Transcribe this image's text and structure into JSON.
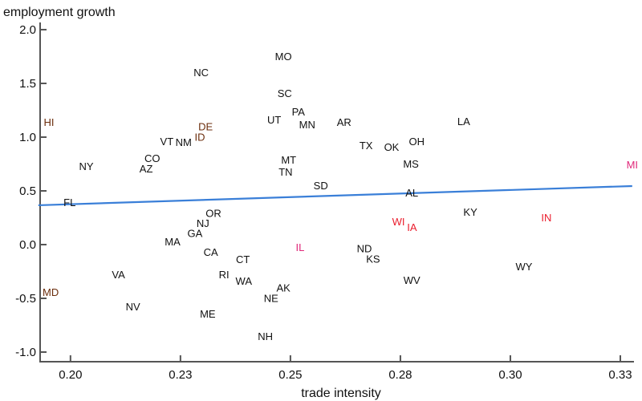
{
  "chart_data": {
    "type": "scatter",
    "title": "employment growth",
    "xlabel": "trade intensity",
    "ylabel": "employment growth",
    "xlim": [
      0.1931,
      0.3281
    ],
    "ylim": [
      -1.082,
      2.067
    ],
    "grid": false,
    "xticks": [
      {
        "value": 0.2,
        "label": "0.20"
      },
      {
        "value": 0.225,
        "label": "0.23"
      },
      {
        "value": 0.25,
        "label": "0.25"
      },
      {
        "value": 0.275,
        "label": "0.28"
      },
      {
        "value": 0.3,
        "label": "0.30"
      },
      {
        "value": 0.325,
        "label": "0.33"
      }
    ],
    "yticks": [
      {
        "value": 2.0,
        "label": "2.0"
      },
      {
        "value": 1.5,
        "label": "1.5"
      },
      {
        "value": 1.0,
        "label": "1.0"
      },
      {
        "value": 0.5,
        "label": "0.5"
      },
      {
        "value": 0.0,
        "label": "0.0"
      },
      {
        "value": -0.5,
        "label": "-0.5"
      },
      {
        "value": -1.0,
        "label": "-1.0"
      }
    ],
    "fit_line": {
      "x": [
        0.1927,
        0.3277
      ],
      "y": [
        0.366,
        0.545
      ],
      "color": "#3a7fd8"
    },
    "colors": {
      "default": "#111111",
      "brown": "#6b2d0c",
      "red": "#ea1c2c",
      "pink": "#e0287a"
    },
    "points": [
      {
        "label": "MO",
        "x": 0.2484,
        "y": 1.754,
        "c": "default"
      },
      {
        "label": "NC",
        "x": 0.2297,
        "y": 1.604,
        "c": "default"
      },
      {
        "label": "SC",
        "x": 0.2487,
        "y": 1.41,
        "c": "default"
      },
      {
        "label": "PA",
        "x": 0.2518,
        "y": 1.239,
        "c": "default"
      },
      {
        "label": "UT",
        "x": 0.2463,
        "y": 1.164,
        "c": "default"
      },
      {
        "label": "MN",
        "x": 0.2538,
        "y": 1.119,
        "c": "default"
      },
      {
        "label": "AR",
        "x": 0.2622,
        "y": 1.142,
        "c": "default"
      },
      {
        "label": "LA",
        "x": 0.2894,
        "y": 1.149,
        "c": "default"
      },
      {
        "label": "HI",
        "x": 0.1951,
        "y": 1.142,
        "c": "brown"
      },
      {
        "label": "DE",
        "x": 0.2307,
        "y": 1.082,
        "c": "brown"
      },
      {
        "label": "ID",
        "x": 0.2294,
        "y": 1.022,
        "c": "brown"
      },
      {
        "label": "VT",
        "x": 0.2219,
        "y": 0.963,
        "c": "default"
      },
      {
        "label": "NM",
        "x": 0.2257,
        "y": 0.955,
        "c": "default"
      },
      {
        "label": "TX",
        "x": 0.2672,
        "y": 0.925,
        "c": "default"
      },
      {
        "label": "OK",
        "x": 0.273,
        "y": 0.91,
        "c": "default"
      },
      {
        "label": "OH",
        "x": 0.2787,
        "y": 0.963,
        "c": "default"
      },
      {
        "label": "NY",
        "x": 0.2036,
        "y": 0.731,
        "c": "default"
      },
      {
        "label": "AZ",
        "x": 0.2172,
        "y": 0.746,
        "c": "default"
      },
      {
        "label": "CO",
        "x": 0.2186,
        "y": 0.769,
        "c": "default"
      },
      {
        "label": "MT",
        "x": 0.2496,
        "y": 0.791,
        "c": "default"
      },
      {
        "label": "TN",
        "x": 0.2489,
        "y": 0.679,
        "c": "default"
      },
      {
        "label": "MS",
        "x": 0.2774,
        "y": 0.754,
        "c": "default"
      },
      {
        "label": "MI",
        "x": 0.3277,
        "y": 0.746,
        "c": "pink"
      },
      {
        "label": "SD",
        "x": 0.2569,
        "y": 0.552,
        "c": "default"
      },
      {
        "label": "FL",
        "x": 0.1998,
        "y": 0.396,
        "c": "default"
      },
      {
        "label": "AL",
        "x": 0.2776,
        "y": 0.485,
        "c": "default"
      },
      {
        "label": "KY",
        "x": 0.2909,
        "y": 0.306,
        "c": "default"
      },
      {
        "label": "WI",
        "x": 0.275,
        "y": 0.216,
        "c": "red"
      },
      {
        "label": "IA",
        "x": 0.2772,
        "y": 0.164,
        "c": "red"
      },
      {
        "label": "IN",
        "x": 0.3082,
        "y": 0.254,
        "c": "red"
      },
      {
        "label": "OR",
        "x": 0.2325,
        "y": 0.269,
        "c": "default"
      },
      {
        "label": "NJ",
        "x": 0.2301,
        "y": 0.194,
        "c": "default"
      },
      {
        "label": "GA",
        "x": 0.2283,
        "y": 0.142,
        "c": "default"
      },
      {
        "label": "MA",
        "x": 0.2232,
        "y": 0.03,
        "c": "default"
      },
      {
        "label": "CA",
        "x": 0.2319,
        "y": -0.067,
        "c": "default"
      },
      {
        "label": "IL",
        "x": 0.2522,
        "y": -0.022,
        "c": "pink"
      },
      {
        "label": "CT",
        "x": 0.2392,
        "y": -0.134,
        "c": "default"
      },
      {
        "label": "ND",
        "x": 0.2668,
        "y": -0.06,
        "c": "default"
      },
      {
        "label": "KS",
        "x": 0.2688,
        "y": -0.104,
        "c": "default"
      },
      {
        "label": "WY",
        "x": 0.3031,
        "y": -0.201,
        "c": "default"
      },
      {
        "label": "VA",
        "x": 0.2109,
        "y": -0.276,
        "c": "default"
      },
      {
        "label": "RI",
        "x": 0.2349,
        "y": -0.276,
        "c": "default"
      },
      {
        "label": "WA",
        "x": 0.2394,
        "y": -0.336,
        "c": "default"
      },
      {
        "label": "WV",
        "x": 0.2776,
        "y": -0.328,
        "c": "default"
      },
      {
        "label": "AK",
        "x": 0.2484,
        "y": -0.418,
        "c": "default"
      },
      {
        "label": "NE",
        "x": 0.2456,
        "y": -0.478,
        "c": "default"
      },
      {
        "label": "MD",
        "x": 0.1953,
        "y": -0.44,
        "c": "brown"
      },
      {
        "label": "NV",
        "x": 0.2142,
        "y": -0.575,
        "c": "default"
      },
      {
        "label": "ME",
        "x": 0.2312,
        "y": -0.642,
        "c": "default"
      },
      {
        "label": "NH",
        "x": 0.2443,
        "y": -0.851,
        "c": "default"
      }
    ]
  }
}
